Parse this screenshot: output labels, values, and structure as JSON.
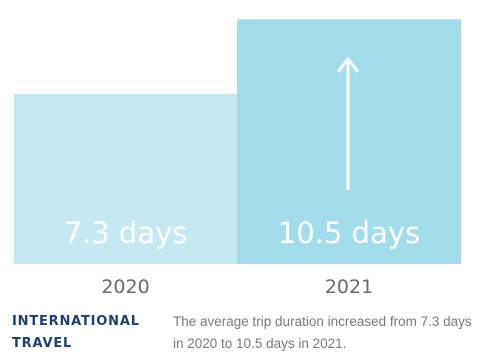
{
  "chart_data": {
    "type": "bar",
    "categories": [
      "2020",
      "2021"
    ],
    "values": [
      7.3,
      10.5
    ],
    "value_labels": [
      "7.3 days",
      "10.5 days"
    ],
    "colors": [
      "#c6e8f1",
      "#a3dcea"
    ],
    "annotation": "up-arrow-on-2021-bar",
    "xlabel": "",
    "ylabel": ""
  },
  "footer": {
    "category_title": "INTERNATIONAL TRAVEL",
    "caption": "The average trip duration increased from 7.3 days in 2020 to 10.5 days in 2021."
  }
}
